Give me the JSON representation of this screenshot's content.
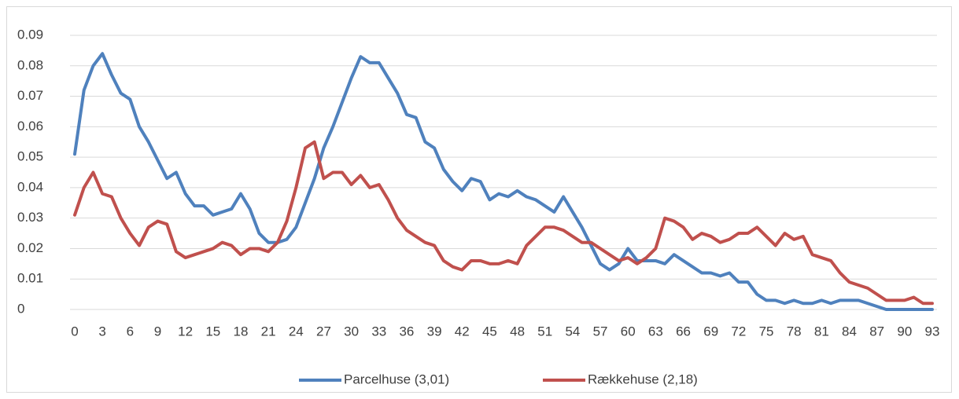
{
  "chart_data": {
    "type": "line",
    "x": [
      0,
      1,
      2,
      3,
      4,
      5,
      6,
      7,
      8,
      9,
      10,
      11,
      12,
      13,
      14,
      15,
      16,
      17,
      18,
      19,
      20,
      21,
      22,
      23,
      24,
      25,
      26,
      27,
      28,
      29,
      30,
      31,
      32,
      33,
      34,
      35,
      36,
      37,
      38,
      39,
      40,
      41,
      42,
      43,
      44,
      45,
      46,
      47,
      48,
      49,
      50,
      51,
      52,
      53,
      54,
      55,
      56,
      57,
      58,
      59,
      60,
      61,
      62,
      63,
      64,
      65,
      66,
      67,
      68,
      69,
      70,
      71,
      72,
      73,
      74,
      75,
      76,
      77,
      78,
      79,
      80,
      81,
      82,
      83,
      84,
      85,
      86,
      87,
      88,
      89,
      90,
      91,
      92,
      93
    ],
    "xlim": [
      0,
      93
    ],
    "xticks": [
      0,
      3,
      6,
      9,
      12,
      15,
      18,
      21,
      24,
      27,
      30,
      33,
      36,
      39,
      42,
      45,
      48,
      51,
      54,
      57,
      60,
      63,
      66,
      69,
      72,
      75,
      78,
      81,
      84,
      87,
      90,
      93
    ],
    "ylim": [
      0,
      0.09
    ],
    "yticks": [
      0,
      0.01,
      0.02,
      0.03,
      0.04,
      0.05,
      0.06,
      0.07,
      0.08,
      0.09
    ],
    "grid": true,
    "legend": "bottom",
    "series": [
      {
        "name": "Parcelhuse (3,01)",
        "color": "#4f81bd",
        "values": [
          0.051,
          0.072,
          0.08,
          0.084,
          0.077,
          0.071,
          0.069,
          0.06,
          0.055,
          0.049,
          0.043,
          0.045,
          0.038,
          0.034,
          0.034,
          0.031,
          0.032,
          0.033,
          0.038,
          0.033,
          0.025,
          0.022,
          0.022,
          0.023,
          0.027,
          0.035,
          0.043,
          0.053,
          0.06,
          0.068,
          0.076,
          0.083,
          0.081,
          0.081,
          0.076,
          0.071,
          0.064,
          0.063,
          0.055,
          0.053,
          0.046,
          0.042,
          0.039,
          0.043,
          0.042,
          0.036,
          0.038,
          0.037,
          0.039,
          0.037,
          0.036,
          0.034,
          0.032,
          0.037,
          0.032,
          0.027,
          0.021,
          0.015,
          0.013,
          0.015,
          0.02,
          0.016,
          0.016,
          0.016,
          0.015,
          0.018,
          0.016,
          0.014,
          0.012,
          0.012,
          0.011,
          0.012,
          0.009,
          0.009,
          0.005,
          0.003,
          0.003,
          0.002,
          0.003,
          0.002,
          0.002,
          0.003,
          0.002,
          0.003,
          0.003,
          0.003,
          0.002,
          0.001,
          0,
          0,
          0,
          0,
          0,
          0
        ]
      },
      {
        "name": "Rækkehuse (2,18)",
        "color": "#c0504d",
        "values": [
          0.031,
          0.04,
          0.045,
          0.038,
          0.037,
          0.03,
          0.025,
          0.021,
          0.027,
          0.029,
          0.028,
          0.019,
          0.017,
          0.018,
          0.019,
          0.02,
          0.022,
          0.021,
          0.018,
          0.02,
          0.02,
          0.019,
          0.022,
          0.029,
          0.04,
          0.053,
          0.055,
          0.043,
          0.045,
          0.045,
          0.041,
          0.044,
          0.04,
          0.041,
          0.036,
          0.03,
          0.026,
          0.024,
          0.022,
          0.021,
          0.016,
          0.014,
          0.013,
          0.016,
          0.016,
          0.015,
          0.015,
          0.016,
          0.015,
          0.021,
          0.024,
          0.027,
          0.027,
          0.026,
          0.024,
          0.022,
          0.022,
          0.02,
          0.018,
          0.016,
          0.017,
          0.015,
          0.017,
          0.02,
          0.03,
          0.029,
          0.027,
          0.023,
          0.025,
          0.024,
          0.022,
          0.023,
          0.025,
          0.025,
          0.027,
          0.024,
          0.021,
          0.025,
          0.023,
          0.024,
          0.018,
          0.017,
          0.016,
          0.012,
          0.009,
          0.008,
          0.007,
          0.005,
          0.003,
          0.003,
          0.003,
          0.004,
          0.002,
          0.002
        ]
      }
    ]
  }
}
